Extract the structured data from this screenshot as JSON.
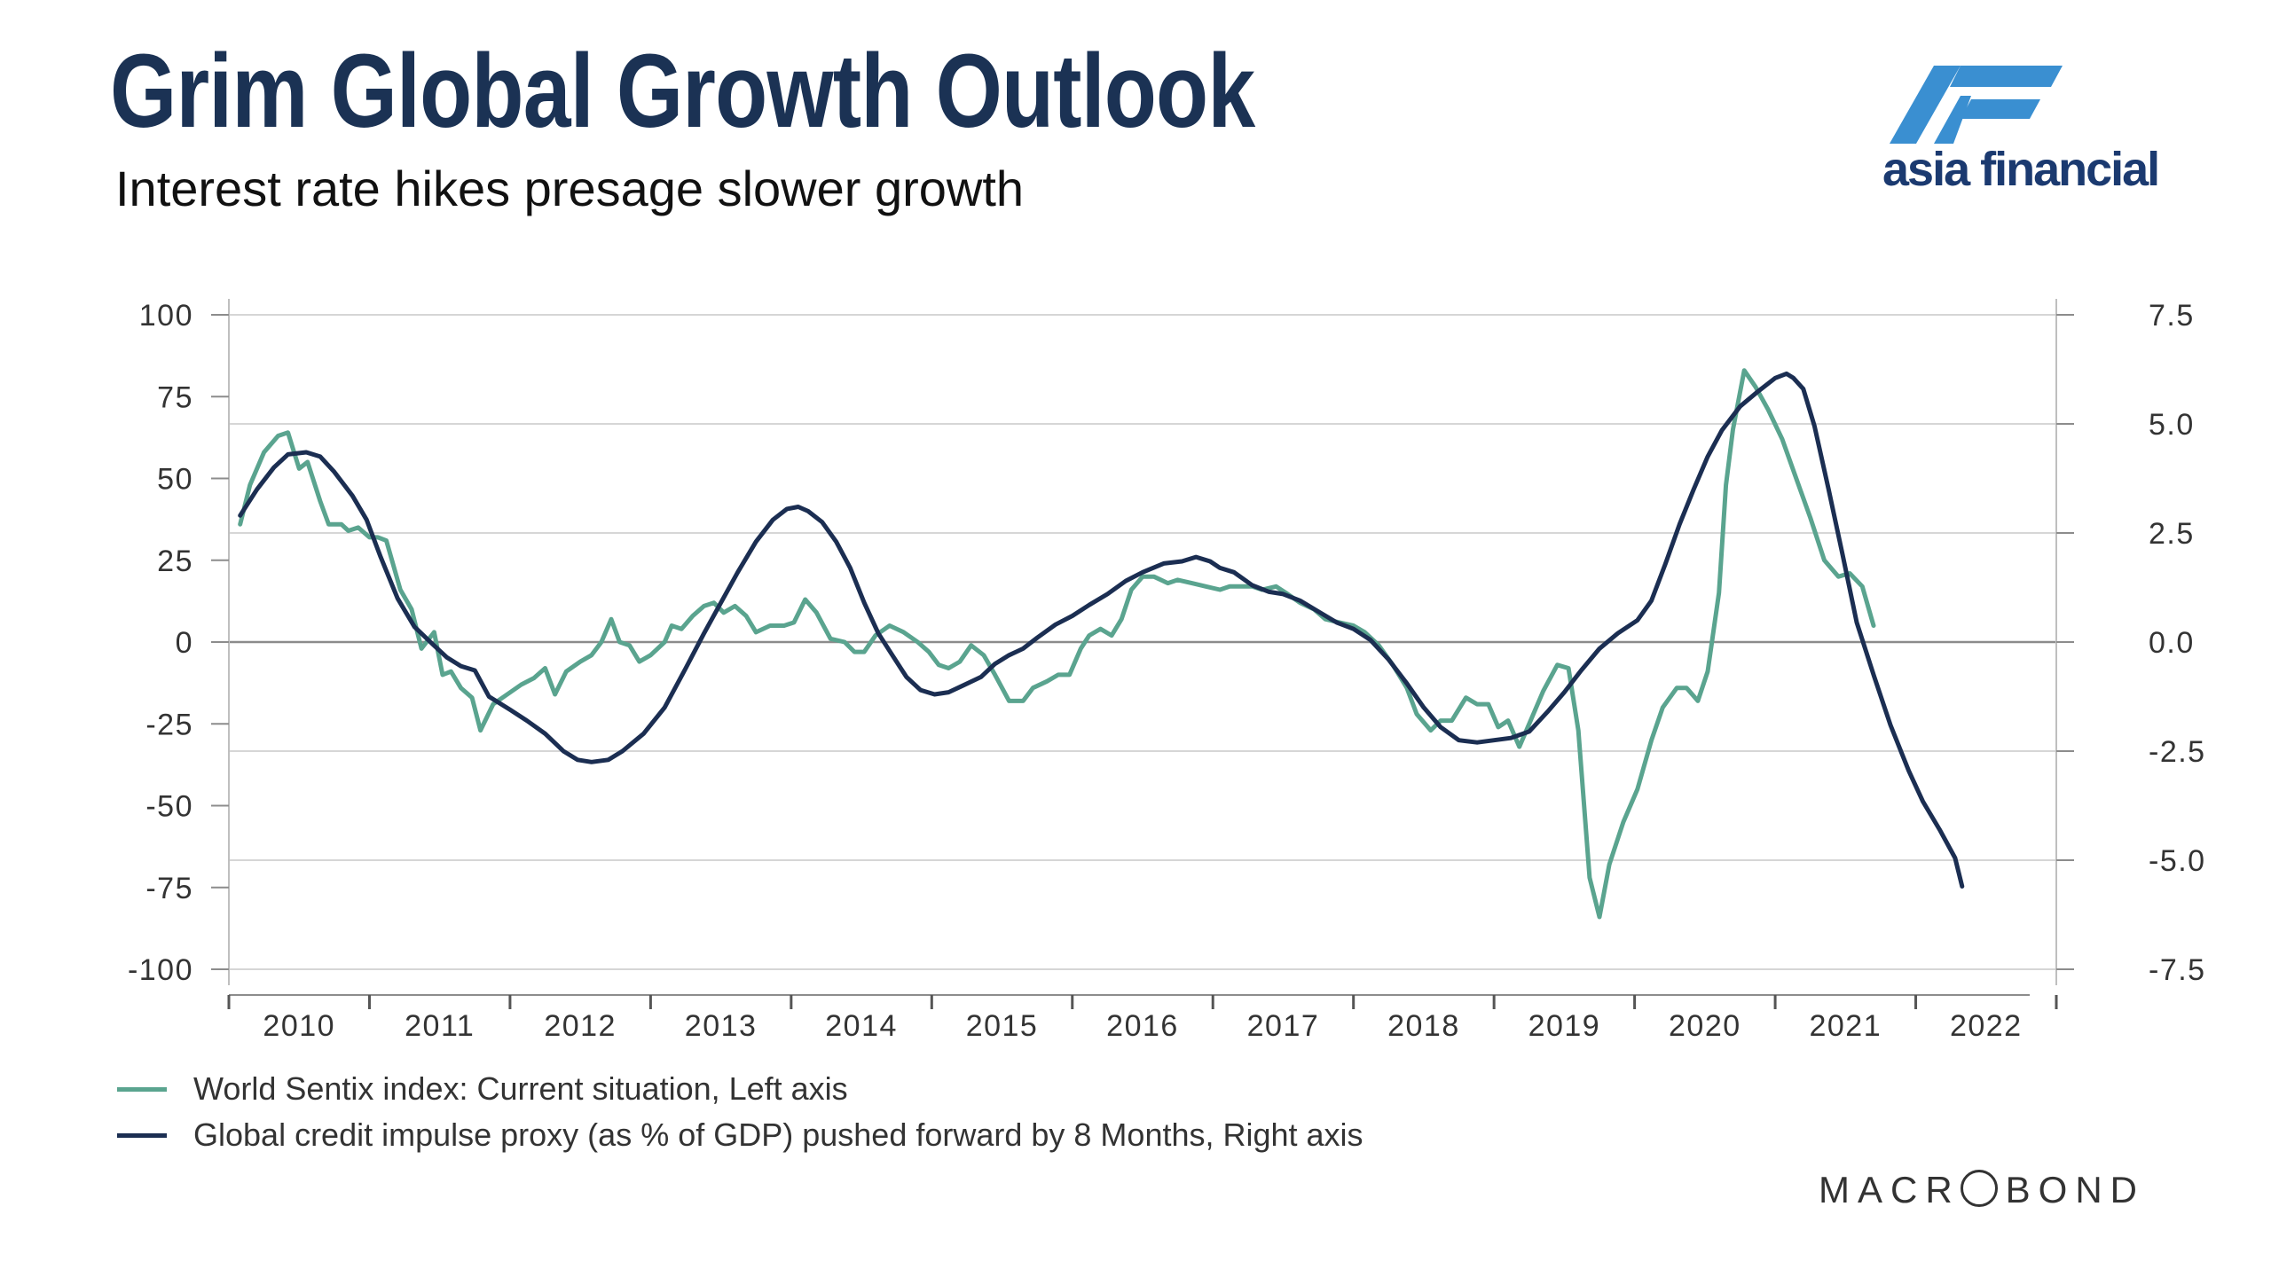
{
  "header": {
    "title": "Grim Global Growth Outlook",
    "subtitle": "Interest rate hikes presage slower growth"
  },
  "brand": {
    "logo_text": "asia financial",
    "logo_color": "#1b3a70",
    "logo_accent": "#3a8fd1",
    "source_pre": "MACR",
    "source_post": "BOND"
  },
  "chart_data": {
    "type": "line",
    "title": "Grim Global Growth Outlook",
    "subtitle": "Interest rate hikes presage slower growth",
    "x_ticks": [
      "2010",
      "2011",
      "2012",
      "2013",
      "2014",
      "2015",
      "2016",
      "2017",
      "2018",
      "2019",
      "2020",
      "2021",
      "2022"
    ],
    "xlim": [
      2009.5,
      2022.5
    ],
    "y_left": {
      "lim": [
        -100,
        100
      ],
      "ticks": [
        "100",
        "75",
        "50",
        "25",
        "0",
        "-25",
        "-50",
        "-75",
        "-100"
      ]
    },
    "y_right": {
      "lim": [
        -7.5,
        7.5
      ],
      "ticks": [
        "7.5",
        "5.0",
        "2.5",
        "0.0",
        "-2.5",
        "-5.0",
        "-7.5"
      ]
    },
    "grid": true,
    "legend_position": "bottom-left",
    "series": [
      {
        "name": "World Sentix index: Current situation, Left axis",
        "axis": "left",
        "color": "#5aa48f",
        "points": [
          [
            2009.58,
            36
          ],
          [
            2009.65,
            48
          ],
          [
            2009.75,
            58
          ],
          [
            2009.85,
            63
          ],
          [
            2009.92,
            64
          ],
          [
            2010.0,
            53
          ],
          [
            2010.06,
            55
          ],
          [
            2010.15,
            43
          ],
          [
            2010.21,
            36
          ],
          [
            2010.3,
            36
          ],
          [
            2010.35,
            34
          ],
          [
            2010.42,
            35
          ],
          [
            2010.5,
            32
          ],
          [
            2010.56,
            32
          ],
          [
            2010.62,
            31
          ],
          [
            2010.72,
            16
          ],
          [
            2010.8,
            10
          ],
          [
            2010.87,
            -2
          ],
          [
            2010.96,
            3
          ],
          [
            2011.02,
            -10
          ],
          [
            2011.08,
            -9
          ],
          [
            2011.15,
            -14
          ],
          [
            2011.23,
            -17
          ],
          [
            2011.29,
            -27
          ],
          [
            2011.38,
            -19
          ],
          [
            2011.48,
            -16
          ],
          [
            2011.58,
            -13
          ],
          [
            2011.67,
            -11
          ],
          [
            2011.75,
            -8
          ],
          [
            2011.82,
            -16
          ],
          [
            2011.9,
            -9
          ],
          [
            2012.0,
            -6
          ],
          [
            2012.08,
            -4
          ],
          [
            2012.15,
            0
          ],
          [
            2012.22,
            7
          ],
          [
            2012.28,
            0
          ],
          [
            2012.35,
            -1
          ],
          [
            2012.42,
            -6
          ],
          [
            2012.5,
            -4
          ],
          [
            2012.6,
            0
          ],
          [
            2012.65,
            5
          ],
          [
            2012.72,
            4
          ],
          [
            2012.8,
            8
          ],
          [
            2012.88,
            11
          ],
          [
            2012.95,
            12
          ],
          [
            2013.02,
            9
          ],
          [
            2013.1,
            11
          ],
          [
            2013.18,
            8
          ],
          [
            2013.25,
            3
          ],
          [
            2013.35,
            5
          ],
          [
            2013.45,
            5
          ],
          [
            2013.52,
            6
          ],
          [
            2013.6,
            13
          ],
          [
            2013.68,
            9
          ],
          [
            2013.78,
            1
          ],
          [
            2013.88,
            0
          ],
          [
            2013.95,
            -3
          ],
          [
            2014.02,
            -3
          ],
          [
            2014.1,
            2
          ],
          [
            2014.2,
            5
          ],
          [
            2014.3,
            3
          ],
          [
            2014.4,
            0
          ],
          [
            2014.48,
            -3
          ],
          [
            2014.55,
            -7
          ],
          [
            2014.62,
            -8
          ],
          [
            2014.7,
            -6
          ],
          [
            2014.78,
            -1
          ],
          [
            2014.87,
            -4
          ],
          [
            2014.95,
            -10
          ],
          [
            2015.05,
            -18
          ],
          [
            2015.15,
            -18
          ],
          [
            2015.22,
            -14
          ],
          [
            2015.32,
            -12
          ],
          [
            2015.4,
            -10
          ],
          [
            2015.48,
            -10
          ],
          [
            2015.56,
            -2
          ],
          [
            2015.62,
            2
          ],
          [
            2015.7,
            4
          ],
          [
            2015.78,
            2
          ],
          [
            2015.85,
            7
          ],
          [
            2015.92,
            16
          ],
          [
            2016.0,
            20
          ],
          [
            2016.08,
            20
          ],
          [
            2016.18,
            18
          ],
          [
            2016.25,
            19
          ],
          [
            2016.35,
            18
          ],
          [
            2016.45,
            17
          ],
          [
            2016.55,
            16
          ],
          [
            2016.62,
            17
          ],
          [
            2016.7,
            17
          ],
          [
            2016.78,
            17
          ],
          [
            2016.85,
            16
          ],
          [
            2016.95,
            17
          ],
          [
            2017.02,
            15
          ],
          [
            2017.12,
            12
          ],
          [
            2017.22,
            10
          ],
          [
            2017.3,
            7
          ],
          [
            2017.4,
            6
          ],
          [
            2017.5,
            5
          ],
          [
            2017.58,
            3
          ],
          [
            2017.68,
            -1
          ],
          [
            2017.78,
            -7
          ],
          [
            2017.88,
            -14
          ],
          [
            2017.95,
            -22
          ],
          [
            2018.05,
            -27
          ],
          [
            2018.12,
            -24
          ],
          [
            2018.2,
            -24
          ],
          [
            2018.3,
            -17
          ],
          [
            2018.38,
            -19
          ],
          [
            2018.46,
            -19
          ],
          [
            2018.53,
            -26
          ],
          [
            2018.6,
            -24
          ],
          [
            2018.68,
            -32
          ],
          [
            2018.75,
            -25
          ],
          [
            2018.85,
            -15
          ],
          [
            2018.95,
            -7
          ],
          [
            2019.03,
            -8
          ],
          [
            2019.1,
            -27
          ],
          [
            2019.18,
            -72
          ],
          [
            2019.25,
            -84
          ],
          [
            2019.32,
            -68
          ],
          [
            2019.42,
            -55
          ],
          [
            2019.52,
            -45
          ],
          [
            2019.62,
            -30
          ],
          [
            2019.7,
            -20
          ],
          [
            2019.8,
            -14
          ],
          [
            2019.87,
            -14
          ],
          [
            2019.95,
            -18
          ],
          [
            2020.02,
            -9
          ],
          [
            2020.1,
            15
          ],
          [
            2020.15,
            48
          ],
          [
            2020.2,
            65
          ],
          [
            2020.28,
            83
          ],
          [
            2020.36,
            78
          ],
          [
            2020.45,
            71
          ],
          [
            2020.55,
            62
          ],
          [
            2020.65,
            50
          ],
          [
            2020.75,
            38
          ],
          [
            2020.85,
            25
          ],
          [
            2020.95,
            20
          ],
          [
            2021.03,
            21
          ],
          [
            2021.12,
            17
          ],
          [
            2021.2,
            5
          ]
        ]
      },
      {
        "name": "Global credit impulse proxy (as % of GDP) pushed forward by 8 Months, Right axis",
        "axis": "right",
        "color": "#1b2e52",
        "points": [
          [
            2009.58,
            2.9
          ],
          [
            2009.7,
            3.5
          ],
          [
            2009.82,
            4.0
          ],
          [
            2009.92,
            4.3
          ],
          [
            2010.05,
            4.35
          ],
          [
            2010.15,
            4.25
          ],
          [
            2010.25,
            3.9
          ],
          [
            2010.38,
            3.35
          ],
          [
            2010.48,
            2.8
          ],
          [
            2010.58,
            1.95
          ],
          [
            2010.7,
            1.0
          ],
          [
            2010.82,
            0.35
          ],
          [
            2010.95,
            -0.05
          ],
          [
            2011.05,
            -0.35
          ],
          [
            2011.15,
            -0.55
          ],
          [
            2011.25,
            -0.65
          ],
          [
            2011.35,
            -1.25
          ],
          [
            2011.5,
            -1.55
          ],
          [
            2011.62,
            -1.8
          ],
          [
            2011.75,
            -2.1
          ],
          [
            2011.88,
            -2.5
          ],
          [
            2011.98,
            -2.7
          ],
          [
            2012.08,
            -2.75
          ],
          [
            2012.2,
            -2.7
          ],
          [
            2012.3,
            -2.5
          ],
          [
            2012.45,
            -2.1
          ],
          [
            2012.6,
            -1.5
          ],
          [
            2012.75,
            -0.6
          ],
          [
            2012.88,
            0.2
          ],
          [
            2013.0,
            0.9
          ],
          [
            2013.12,
            1.6
          ],
          [
            2013.25,
            2.3
          ],
          [
            2013.37,
            2.8
          ],
          [
            2013.47,
            3.05
          ],
          [
            2013.55,
            3.1
          ],
          [
            2013.62,
            3.0
          ],
          [
            2013.72,
            2.75
          ],
          [
            2013.82,
            2.3
          ],
          [
            2013.92,
            1.7
          ],
          [
            2014.02,
            0.9
          ],
          [
            2014.12,
            0.2
          ],
          [
            2014.22,
            -0.3
          ],
          [
            2014.32,
            -0.8
          ],
          [
            2014.42,
            -1.1
          ],
          [
            2014.52,
            -1.2
          ],
          [
            2014.62,
            -1.15
          ],
          [
            2014.72,
            -1.0
          ],
          [
            2014.85,
            -0.8
          ],
          [
            2014.95,
            -0.5
          ],
          [
            2015.05,
            -0.3
          ],
          [
            2015.15,
            -0.15
          ],
          [
            2015.25,
            0.1
          ],
          [
            2015.38,
            0.4
          ],
          [
            2015.5,
            0.6
          ],
          [
            2015.62,
            0.85
          ],
          [
            2015.75,
            1.1
          ],
          [
            2015.88,
            1.4
          ],
          [
            2016.0,
            1.6
          ],
          [
            2016.15,
            1.8
          ],
          [
            2016.28,
            1.85
          ],
          [
            2016.38,
            1.95
          ],
          [
            2016.48,
            1.85
          ],
          [
            2016.55,
            1.7
          ],
          [
            2016.65,
            1.6
          ],
          [
            2016.78,
            1.3
          ],
          [
            2016.9,
            1.15
          ],
          [
            2017.0,
            1.1
          ],
          [
            2017.12,
            0.95
          ],
          [
            2017.25,
            0.7
          ],
          [
            2017.38,
            0.45
          ],
          [
            2017.5,
            0.3
          ],
          [
            2017.62,
            0.05
          ],
          [
            2017.75,
            -0.4
          ],
          [
            2017.88,
            -0.95
          ],
          [
            2018.0,
            -1.5
          ],
          [
            2018.12,
            -1.95
          ],
          [
            2018.25,
            -2.25
          ],
          [
            2018.38,
            -2.3
          ],
          [
            2018.5,
            -2.25
          ],
          [
            2018.62,
            -2.2
          ],
          [
            2018.75,
            -2.05
          ],
          [
            2018.88,
            -1.6
          ],
          [
            2019.0,
            -1.15
          ],
          [
            2019.12,
            -0.65
          ],
          [
            2019.25,
            -0.15
          ],
          [
            2019.38,
            0.2
          ],
          [
            2019.52,
            0.5
          ],
          [
            2019.62,
            0.95
          ],
          [
            2019.72,
            1.8
          ],
          [
            2019.82,
            2.7
          ],
          [
            2019.92,
            3.5
          ],
          [
            2020.02,
            4.25
          ],
          [
            2020.12,
            4.85
          ],
          [
            2020.25,
            5.4
          ],
          [
            2020.38,
            5.75
          ],
          [
            2020.5,
            6.05
          ],
          [
            2020.58,
            6.15
          ],
          [
            2020.63,
            6.05
          ],
          [
            2020.7,
            5.8
          ],
          [
            2020.78,
            4.95
          ],
          [
            2020.88,
            3.5
          ],
          [
            2020.98,
            2.0
          ],
          [
            2021.08,
            0.45
          ],
          [
            2021.2,
            -0.75
          ],
          [
            2021.32,
            -1.9
          ],
          [
            2021.45,
            -2.95
          ],
          [
            2021.55,
            -3.65
          ],
          [
            2021.67,
            -4.3
          ],
          [
            2021.78,
            -4.95
          ],
          [
            2021.83,
            -5.6
          ]
        ]
      }
    ]
  }
}
